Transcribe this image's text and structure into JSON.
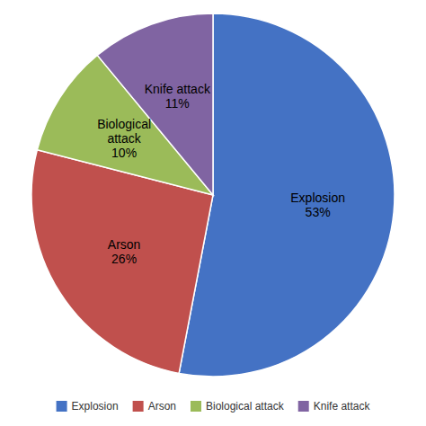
{
  "chart_data": {
    "type": "pie",
    "categories": [
      "Explosion",
      "Arson",
      "Biological attack",
      "Knife attack"
    ],
    "values": [
      53,
      26,
      10,
      11
    ],
    "value_labels": [
      "Explosion\n53%",
      "Arson\n26%",
      "Biological\nattack\n10%",
      "Knife attack\n11%"
    ],
    "colors": [
      "#4472C4",
      "#C0504D",
      "#9BBB59",
      "#8064A2"
    ],
    "data_labels": true,
    "legend": "bottom"
  }
}
